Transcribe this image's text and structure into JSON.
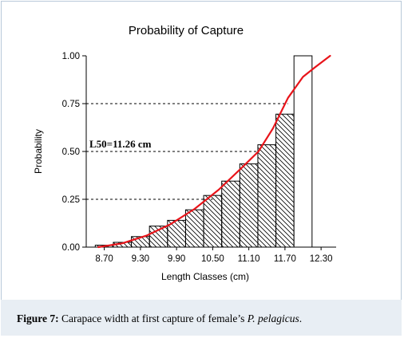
{
  "caption": {
    "label": "Figure 7:",
    "text": " Carapace width at first capture of female’s ",
    "species": "P. pelagicus",
    "end": "."
  },
  "chart_data": {
    "type": "bar",
    "title": "Probability of Capture",
    "xlabel": "Length Classes (cm)",
    "ylabel": "Probability",
    "xlim": [
      8.4,
      12.55
    ],
    "ylim": [
      0,
      1.0
    ],
    "x_ticks": [
      "8.70",
      "9.30",
      "9.90",
      "10.50",
      "11.10",
      "11.70",
      "12.30"
    ],
    "x_tick_values": [
      8.7,
      9.3,
      9.9,
      10.5,
      11.1,
      11.7,
      12.3
    ],
    "y_ticks": [
      "0.00",
      "0.25",
      "0.50",
      "0.75",
      "1.00"
    ],
    "y_tick_values": [
      0,
      0.25,
      0.5,
      0.75,
      1.0
    ],
    "bin_width": 0.3,
    "bin_centers": [
      8.7,
      9.0,
      9.3,
      9.6,
      9.9,
      10.2,
      10.5,
      10.8,
      11.1,
      11.4,
      11.7,
      12.0
    ],
    "values": [
      0.01,
      0.025,
      0.055,
      0.11,
      0.14,
      0.195,
      0.27,
      0.345,
      0.435,
      0.535,
      0.695,
      1.0
    ],
    "hatched": [
      true,
      true,
      true,
      true,
      true,
      true,
      true,
      true,
      true,
      true,
      true,
      false
    ],
    "curve_color": "#e8141a",
    "curve": {
      "x": [
        8.6,
        9.0,
        9.4,
        9.8,
        10.2,
        10.6,
        11.0,
        11.26,
        11.5,
        11.75,
        12.0,
        12.2,
        12.45
      ],
      "y": [
        0.0,
        0.02,
        0.06,
        0.12,
        0.2,
        0.3,
        0.42,
        0.5,
        0.62,
        0.78,
        0.89,
        0.94,
        1.0
      ]
    },
    "reference_lines": [
      {
        "y": 0.25,
        "x_end": 10.5
      },
      {
        "y": 0.5,
        "x_end": 11.26
      },
      {
        "y": 0.75,
        "x_end": 11.75
      }
    ],
    "annotation": "L50=11.26 cm",
    "grid": false,
    "legend": "none"
  }
}
